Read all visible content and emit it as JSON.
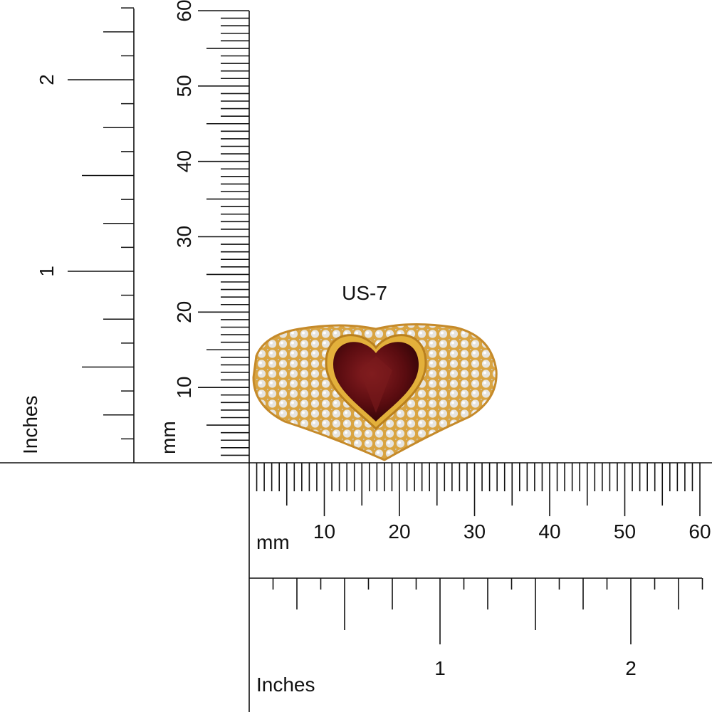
{
  "size_label": "US-7",
  "vertical_ruler": {
    "mm": {
      "unit": "mm",
      "labels": [
        "10",
        "20",
        "30",
        "40",
        "50",
        "60"
      ]
    },
    "inches": {
      "unit": "Inches",
      "labels": [
        "1",
        "2"
      ]
    }
  },
  "horizontal_ruler": {
    "mm": {
      "unit": "mm",
      "labels": [
        "10",
        "20",
        "30",
        "40",
        "50",
        "60"
      ]
    },
    "inches": {
      "unit": "Inches",
      "labels": [
        "1",
        "2"
      ]
    }
  }
}
